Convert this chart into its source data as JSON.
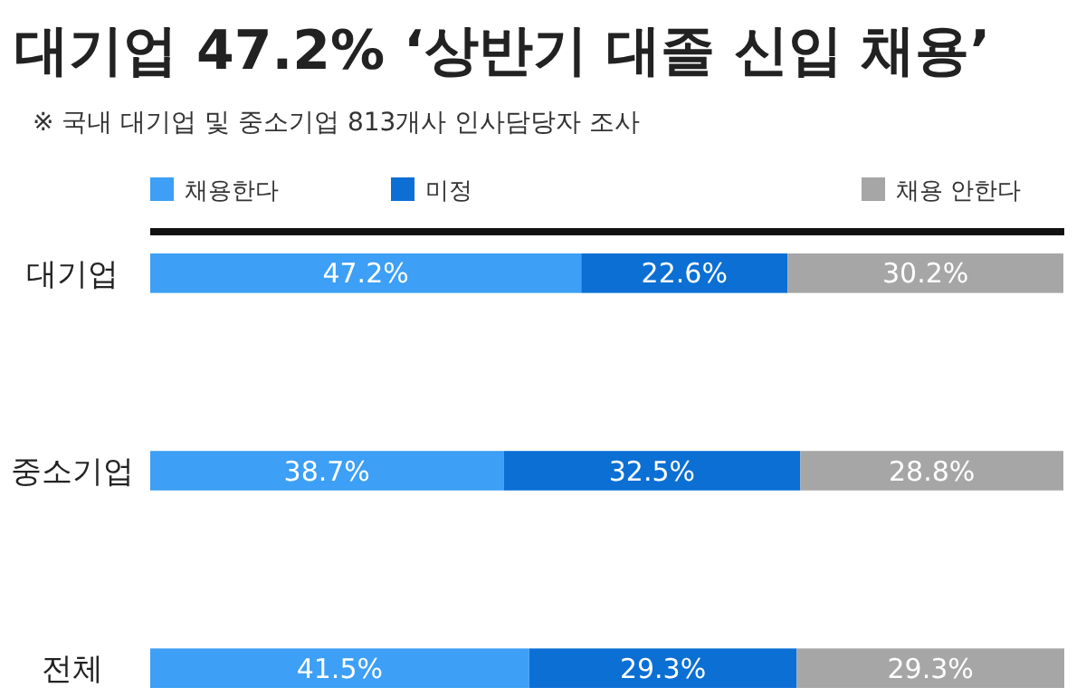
{
  "chart_data": {
    "type": "bar",
    "title": "대기업 47.2% ‘상반기 대졸 신입 채용’",
    "subtitle": "※ 국내 대기업 및 중소기업 813개사 인사담당자 조사",
    "orientation": "horizontal",
    "stacked": true,
    "legend": "top",
    "categories": [
      "대기업",
      "중소기업",
      "전체"
    ],
    "series": [
      {
        "name": "채용한다",
        "color": "#3d9ff5",
        "values": [
          47.2,
          38.7,
          41.5
        ],
        "value_labels": [
          "47.2%",
          "38.7%",
          "41.5%"
        ]
      },
      {
        "name": "미정",
        "color": "#0b6fd4",
        "values": [
          22.6,
          32.5,
          29.3
        ],
        "value_labels": [
          "22.6%",
          "32.5%",
          "29.3%"
        ]
      },
      {
        "name": "채용 안한다",
        "color": "#a6a6a6",
        "values": [
          30.2,
          28.8,
          29.3
        ],
        "value_labels": [
          "30.2%",
          "28.8%",
          "29.3%"
        ]
      }
    ]
  }
}
